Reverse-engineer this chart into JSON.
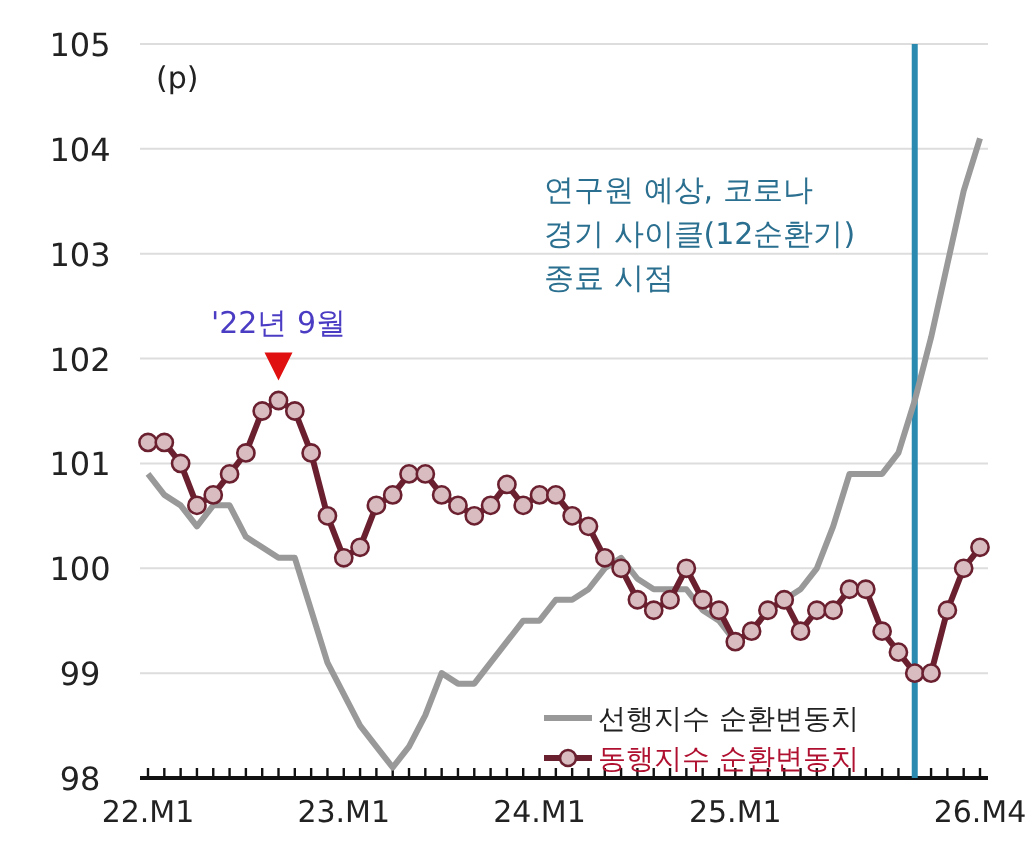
{
  "chart_data": {
    "type": "line",
    "categories": [
      "22.M1",
      null,
      null,
      null,
      null,
      null,
      null,
      null,
      null,
      null,
      null,
      null,
      "23.M1",
      null,
      null,
      null,
      null,
      null,
      null,
      null,
      null,
      null,
      null,
      null,
      "24.M1",
      null,
      null,
      null,
      null,
      null,
      null,
      null,
      null,
      null,
      null,
      null,
      "25.M1",
      null,
      null,
      null,
      null,
      null,
      null,
      null,
      null,
      null,
      null,
      null,
      null,
      null,
      null,
      "26.M4"
    ],
    "series": [
      {
        "name": "선행지수 순환변동치",
        "color": "#999999",
        "marker": "none",
        "values": [
          100.9,
          100.7,
          100.6,
          100.4,
          100.6,
          100.6,
          100.3,
          100.2,
          100.1,
          100.1,
          99.6,
          99.1,
          98.8,
          98.5,
          98.3,
          98.1,
          98.3,
          98.6,
          99.0,
          98.9,
          98.9,
          99.1,
          99.3,
          99.5,
          99.5,
          99.7,
          99.7,
          99.8,
          100.0,
          100.1,
          99.9,
          99.8,
          99.8,
          99.8,
          99.6,
          99.5,
          99.3,
          99.4,
          99.6,
          99.7,
          99.8,
          100.0,
          100.4,
          100.9,
          100.9,
          100.9,
          101.1,
          101.6,
          102.2,
          102.9,
          103.6,
          104.1
        ]
      },
      {
        "name": "동행지수 순환변동치",
        "color": "#6b2030",
        "marker": "circle",
        "values": [
          101.2,
          101.2,
          101.0,
          100.6,
          100.7,
          100.9,
          101.1,
          101.5,
          101.6,
          101.5,
          101.1,
          100.5,
          100.1,
          100.2,
          100.6,
          100.7,
          100.9,
          100.9,
          100.7,
          100.6,
          100.5,
          100.6,
          100.8,
          100.6,
          100.7,
          100.7,
          100.5,
          100.4,
          100.1,
          100.0,
          99.7,
          99.6,
          99.7,
          100.0,
          99.7,
          99.6,
          99.3,
          99.4,
          99.6,
          99.7,
          99.4,
          99.6,
          99.6,
          99.8,
          99.8,
          99.4,
          99.2,
          99.0,
          99.0,
          99.6,
          100.0,
          100.2
        ]
      }
    ],
    "ylim": [
      98,
      105
    ],
    "yticks": [
      98,
      99,
      100,
      101,
      102,
      103,
      104,
      105
    ],
    "grid": "y",
    "legend": "bottom right",
    "line_style": "solid",
    "annotations": [
      "(p)",
      {
        "text": "'22년 9월",
        "y": 101.6
      },
      "연구원 예상, 코로나\n경기 사이클(12순환기)\n종료 시점"
    ]
  }
}
